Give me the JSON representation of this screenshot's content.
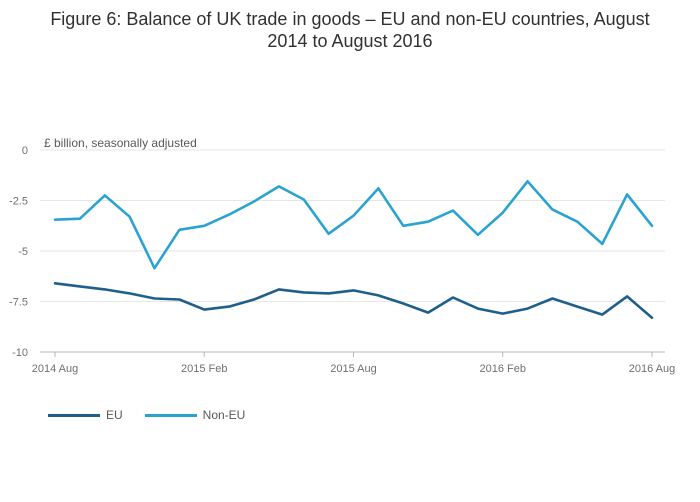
{
  "title_line1": "Figure 6: Balance of UK trade in goods – EU and non-EU countries, August",
  "title_line2": "2014 to August 2016",
  "chart_data": {
    "type": "line",
    "units_label": "£ billion, seasonally adjusted",
    "ylim": [
      -10,
      0
    ],
    "yticks": [
      0,
      -2.5,
      -5,
      -7.5,
      -10
    ],
    "ytick_labels": [
      "0",
      "-2.5",
      "-5",
      "-7.5",
      "-10"
    ],
    "xtick_positions": [
      0,
      6,
      12,
      18,
      24
    ],
    "xtick_labels": [
      "2014 Aug",
      "2015 Feb",
      "2015 Aug",
      "2016 Feb",
      "2016 Aug"
    ],
    "grid": true,
    "legend_position": "bottom-left",
    "series": [
      {
        "name": "EU",
        "color": "#1f5f8b",
        "values": [
          -6.6,
          -6.75,
          -6.9,
          -7.1,
          -7.35,
          -7.4,
          -7.9,
          -7.75,
          -7.4,
          -6.9,
          -7.05,
          -7.1,
          -6.95,
          -7.2,
          -7.6,
          -8.05,
          -7.3,
          -7.85,
          -8.1,
          -7.85,
          -7.35,
          -7.75,
          -8.15,
          -7.25,
          -8.3
        ]
      },
      {
        "name": "Non-EU",
        "color": "#2aa3d0",
        "values": [
          -3.45,
          -3.4,
          -2.25,
          -3.3,
          -5.85,
          -3.95,
          -3.75,
          -3.2,
          -2.55,
          -1.8,
          -2.45,
          -4.15,
          -3.25,
          -1.9,
          -3.75,
          -3.55,
          -3.0,
          -4.2,
          -3.1,
          -1.55,
          -2.95,
          -3.55,
          -4.65,
          -2.2,
          -3.75
        ]
      }
    ]
  }
}
